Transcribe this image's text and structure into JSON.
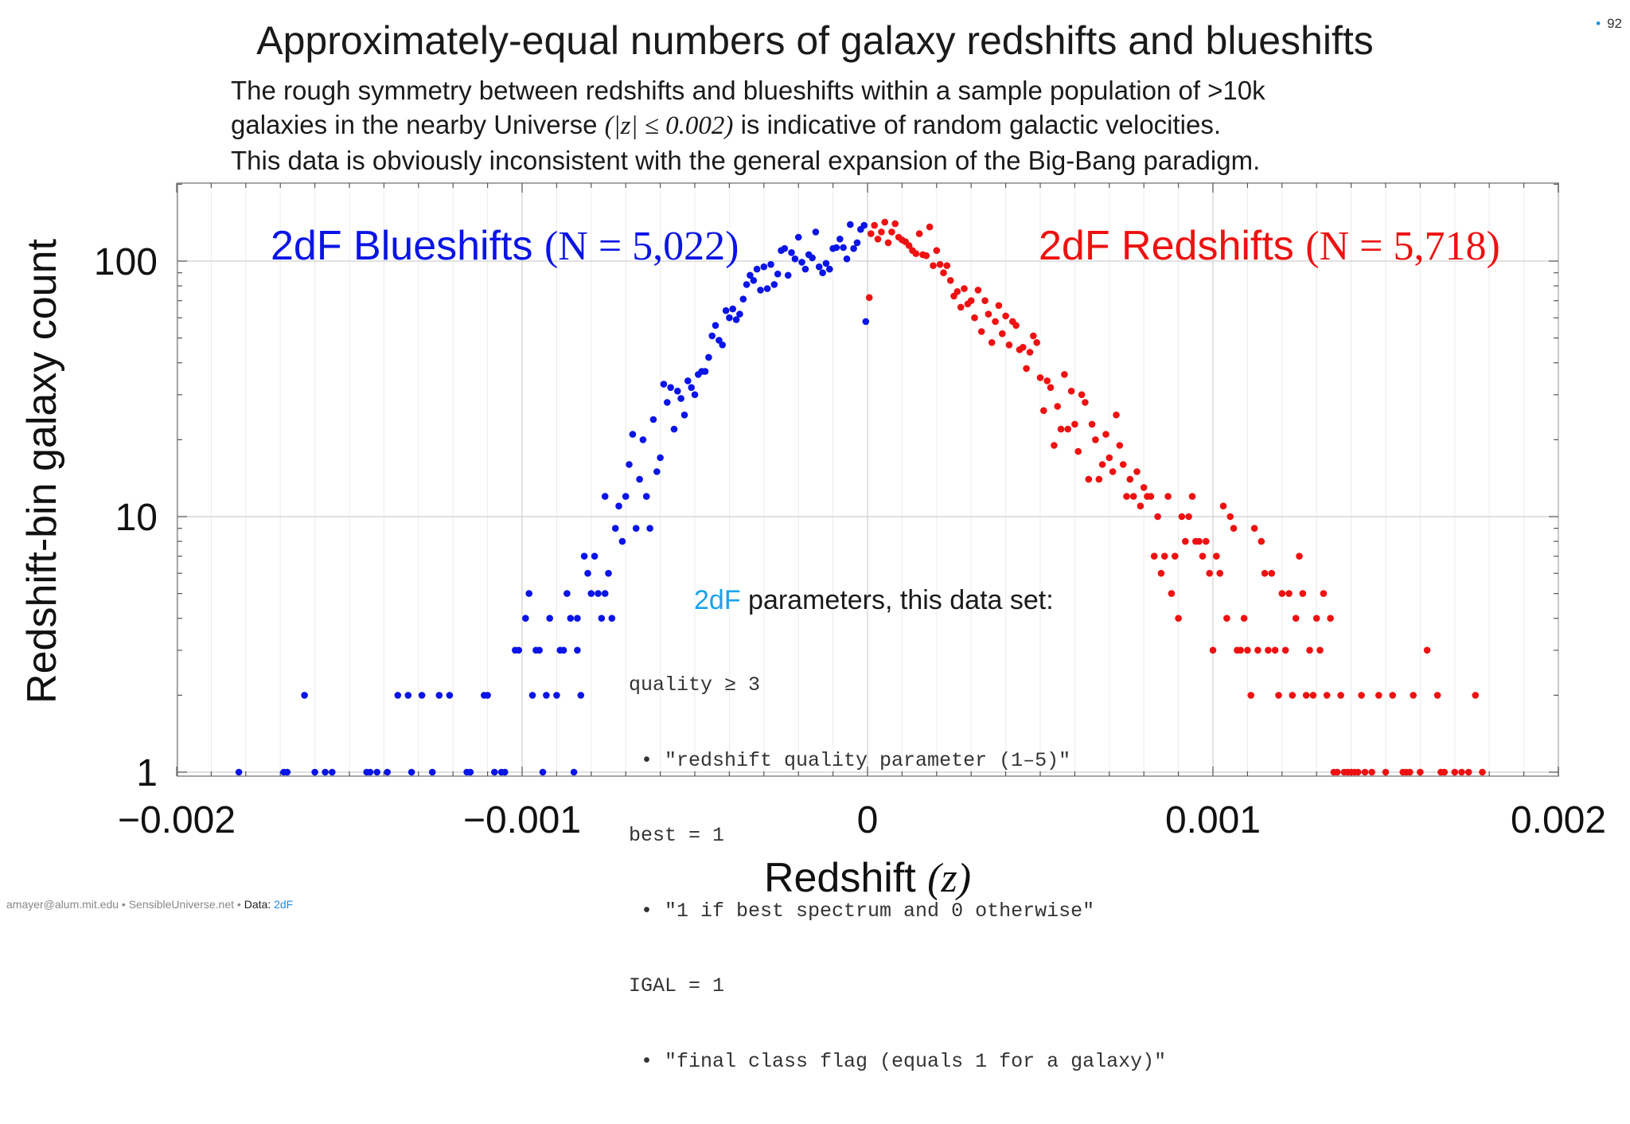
{
  "header": {
    "title": "Approximately-equal numbers of galaxy redshifts and blueshifts",
    "subtitle_line1": "The rough symmetry between redshifts and blueshifts within a sample population of >10k",
    "subtitle_line2_pre": "galaxies in the nearby Universe",
    "subtitle_line2_math": "(|z| ≤ 0.002)",
    "subtitle_line2_post": "is indicative of random galactic velocities.",
    "subtitle_line3": "This data is obviously inconsistent with the general expansion of the Big-Bang paradigm.",
    "page_number": "92"
  },
  "footer": {
    "credit": "amayer@alum.mit.edu • SensibleUniverse.net •",
    "data_label": "Data:",
    "data_source": "2dF"
  },
  "params_box": {
    "heading_highlight": "2dF",
    "heading_rest": " parameters, this data set:",
    "lines": [
      "quality ≥ 3",
      " • \"redshift quality parameter (1–5)\"",
      "best = 1",
      " • \"1 if best spectrum and 0 otherwise\"",
      "IGAL = 1",
      " • \"final class flag (equals 1 for a galaxy)\""
    ]
  },
  "chart_data": {
    "type": "scatter",
    "xlabel": "Redshift",
    "xlabel_var": "(z)",
    "ylabel": "Redshift-bin galaxy count",
    "xlim": [
      -0.002,
      0.002
    ],
    "ylim": [
      0.95,
      200
    ],
    "y_scale": "log",
    "grid": true,
    "x_ticks": [
      -0.002,
      -0.001,
      0,
      0.001,
      0.002
    ],
    "x_tick_labels": [
      "−0.002",
      "−0.001",
      "0",
      "0.001",
      "0.002"
    ],
    "y_ticks": [
      1,
      10,
      100
    ],
    "y_tick_labels": [
      "1",
      "10",
      "100"
    ],
    "colors": {
      "blueshift": "#0a14e6",
      "redshift": "#ee1111"
    },
    "series": [
      {
        "name": "2dF Blueshifts",
        "n_label": "(N = 5,022)",
        "color": "#0a14e6",
        "points": [
          [
            -0.00182,
            1
          ],
          [
            -0.00169,
            1
          ],
          [
            -0.00168,
            1
          ],
          [
            -0.00163,
            2
          ],
          [
            -0.0016,
            1
          ],
          [
            -0.00157,
            1
          ],
          [
            -0.00155,
            1
          ],
          [
            -0.00145,
            1
          ],
          [
            -0.00144,
            1
          ],
          [
            -0.00142,
            1
          ],
          [
            -0.00139,
            1
          ],
          [
            -0.00136,
            2
          ],
          [
            -0.00133,
            2
          ],
          [
            -0.00132,
            1
          ],
          [
            -0.00129,
            2
          ],
          [
            -0.00126,
            1
          ],
          [
            -0.00124,
            2
          ],
          [
            -0.00121,
            2
          ],
          [
            -0.00116,
            1
          ],
          [
            -0.00115,
            1
          ],
          [
            -0.00111,
            2
          ],
          [
            -0.0011,
            2
          ],
          [
            -0.00108,
            1
          ],
          [
            -0.00106,
            1
          ],
          [
            -0.00105,
            1
          ],
          [
            -0.00102,
            3
          ],
          [
            -0.00101,
            3
          ],
          [
            -0.00099,
            4
          ],
          [
            -0.00098,
            5
          ],
          [
            -0.00097,
            2
          ],
          [
            -0.00096,
            3
          ],
          [
            -0.00095,
            3
          ],
          [
            -0.00094,
            1
          ],
          [
            -0.00093,
            2
          ],
          [
            -0.00092,
            4
          ],
          [
            -0.0009,
            2
          ],
          [
            -0.00089,
            3
          ],
          [
            -0.00088,
            3
          ],
          [
            -0.00087,
            5
          ],
          [
            -0.00086,
            4
          ],
          [
            -0.00085,
            1
          ],
          [
            -0.00084,
            3
          ],
          [
            -0.00084,
            4
          ],
          [
            -0.00083,
            2
          ],
          [
            -0.00082,
            7
          ],
          [
            -0.00081,
            6
          ],
          [
            -0.0008,
            5
          ],
          [
            -0.00079,
            7
          ],
          [
            -0.00078,
            5
          ],
          [
            -0.00077,
            4
          ],
          [
            -0.00076,
            5
          ],
          [
            -0.00076,
            12
          ],
          [
            -0.00075,
            6
          ],
          [
            -0.00074,
            4
          ],
          [
            -0.00073,
            9
          ],
          [
            -0.00072,
            11
          ],
          [
            -0.00071,
            8
          ],
          [
            -0.0007,
            12
          ],
          [
            -0.00069,
            16
          ],
          [
            -0.00068,
            21
          ],
          [
            -0.00067,
            9
          ],
          [
            -0.00066,
            14
          ],
          [
            -0.00065,
            20
          ],
          [
            -0.00064,
            12
          ],
          [
            -0.00063,
            9
          ],
          [
            -0.00062,
            24
          ],
          [
            -0.00061,
            15
          ],
          [
            -0.0006,
            17
          ],
          [
            -0.00059,
            33
          ],
          [
            -0.00058,
            28
          ],
          [
            -0.00057,
            32
          ],
          [
            -0.00056,
            22
          ],
          [
            -0.00055,
            31
          ],
          [
            -0.00054,
            29
          ],
          [
            -0.00053,
            25
          ],
          [
            -0.00052,
            34
          ],
          [
            -0.00051,
            32
          ],
          [
            -0.0005,
            30
          ],
          [
            -0.00049,
            36
          ],
          [
            -0.00048,
            37
          ],
          [
            -0.00047,
            37
          ],
          [
            -0.00046,
            42
          ],
          [
            -0.00045,
            51
          ],
          [
            -0.00044,
            56
          ],
          [
            -0.00043,
            49
          ],
          [
            -0.00042,
            47
          ],
          [
            -0.00041,
            64
          ],
          [
            -0.0004,
            60
          ],
          [
            -0.00039,
            65
          ],
          [
            -0.00038,
            59
          ],
          [
            -0.00037,
            62
          ],
          [
            -0.00036,
            71
          ],
          [
            -0.00035,
            81
          ],
          [
            -0.00034,
            88
          ],
          [
            -0.00033,
            84
          ],
          [
            -0.00032,
            93
          ],
          [
            -0.00031,
            77
          ],
          [
            -0.0003,
            95
          ],
          [
            -0.00029,
            78
          ],
          [
            -0.00028,
            97
          ],
          [
            -0.00027,
            81
          ],
          [
            -0.00026,
            89
          ],
          [
            -0.00025,
            110
          ],
          [
            -0.00024,
            112
          ],
          [
            -0.00023,
            88
          ],
          [
            -0.00022,
            108
          ],
          [
            -0.00021,
            102
          ],
          [
            -0.0002,
            124
          ],
          [
            -0.00019,
            99
          ],
          [
            -0.00018,
            93
          ],
          [
            -0.00017,
            106
          ],
          [
            -0.00016,
            103
          ],
          [
            -0.00015,
            130
          ],
          [
            -0.00014,
            95
          ],
          [
            -0.00013,
            90
          ],
          [
            -0.00012,
            98
          ],
          [
            -0.00011,
            93
          ],
          [
            -0.0001,
            112
          ],
          [
            -9e-05,
            113
          ],
          [
            -8e-05,
            122
          ],
          [
            -7e-05,
            113
          ],
          [
            -6e-05,
            102
          ],
          [
            -5e-05,
            139
          ],
          [
            -4e-05,
            112
          ],
          [
            -3e-05,
            118
          ],
          [
            -2e-05,
            133
          ],
          [
            -1e-05,
            138
          ],
          [
            -5e-06,
            58
          ]
        ]
      },
      {
        "name": "2dF Redshifts",
        "n_label": "(N = 5,718)",
        "color": "#ee1111",
        "points": [
          [
            5e-06,
            72
          ],
          [
            1e-05,
            128
          ],
          [
            2e-05,
            138
          ],
          [
            3e-05,
            122
          ],
          [
            4e-05,
            130
          ],
          [
            5e-05,
            142
          ],
          [
            6e-05,
            118
          ],
          [
            7e-05,
            130
          ],
          [
            8e-05,
            140
          ],
          [
            9e-05,
            124
          ],
          [
            0.0001,
            121
          ],
          [
            0.00011,
            119
          ],
          [
            0.00012,
            115
          ],
          [
            0.00013,
            110
          ],
          [
            0.00014,
            107
          ],
          [
            0.00015,
            128
          ],
          [
            0.00016,
            106
          ],
          [
            0.00017,
            105
          ],
          [
            0.00018,
            136
          ],
          [
            0.00019,
            96
          ],
          [
            0.0002,
            110
          ],
          [
            0.00021,
            97
          ],
          [
            0.00022,
            90
          ],
          [
            0.00023,
            96
          ],
          [
            0.00024,
            84
          ],
          [
            0.00025,
            73
          ],
          [
            0.00026,
            76
          ],
          [
            0.00027,
            66
          ],
          [
            0.00028,
            78
          ],
          [
            0.00029,
            68
          ],
          [
            0.0003,
            70
          ],
          [
            0.00031,
            60
          ],
          [
            0.00032,
            77
          ],
          [
            0.00033,
            53
          ],
          [
            0.00034,
            70
          ],
          [
            0.00035,
            62
          ],
          [
            0.00036,
            48
          ],
          [
            0.00037,
            58
          ],
          [
            0.00038,
            67
          ],
          [
            0.00039,
            52
          ],
          [
            0.0004,
            61
          ],
          [
            0.00041,
            47
          ],
          [
            0.00042,
            58
          ],
          [
            0.00043,
            56
          ],
          [
            0.00044,
            45
          ],
          [
            0.00045,
            46
          ],
          [
            0.00046,
            38
          ],
          [
            0.00047,
            44
          ],
          [
            0.00048,
            51
          ],
          [
            0.00049,
            48
          ],
          [
            0.0005,
            35
          ],
          [
            0.00051,
            26
          ],
          [
            0.00052,
            34
          ],
          [
            0.00053,
            32
          ],
          [
            0.00054,
            19
          ],
          [
            0.00055,
            27
          ],
          [
            0.00056,
            22
          ],
          [
            0.00057,
            36
          ],
          [
            0.00058,
            22
          ],
          [
            0.00059,
            31
          ],
          [
            0.0006,
            23
          ],
          [
            0.00061,
            18
          ],
          [
            0.00062,
            30
          ],
          [
            0.00063,
            28
          ],
          [
            0.00064,
            14
          ],
          [
            0.00065,
            23
          ],
          [
            0.00066,
            20
          ],
          [
            0.00067,
            14
          ],
          [
            0.00068,
            16
          ],
          [
            0.00069,
            21
          ],
          [
            0.0007,
            17
          ],
          [
            0.00071,
            15
          ],
          [
            0.00072,
            25
          ],
          [
            0.00073,
            19
          ],
          [
            0.00074,
            16
          ],
          [
            0.00075,
            12
          ],
          [
            0.00076,
            14
          ],
          [
            0.00077,
            12
          ],
          [
            0.00078,
            15
          ],
          [
            0.00079,
            11
          ],
          [
            0.0008,
            13
          ],
          [
            0.00081,
            12
          ],
          [
            0.00082,
            12
          ],
          [
            0.00083,
            7
          ],
          [
            0.00084,
            10
          ],
          [
            0.00085,
            6
          ],
          [
            0.00086,
            7
          ],
          [
            0.00087,
            12
          ],
          [
            0.00088,
            5
          ],
          [
            0.00089,
            7
          ],
          [
            0.0009,
            4
          ],
          [
            0.00091,
            10
          ],
          [
            0.00092,
            8
          ],
          [
            0.00093,
            10
          ],
          [
            0.00094,
            12
          ],
          [
            0.00095,
            8
          ],
          [
            0.00096,
            8
          ],
          [
            0.00097,
            7
          ],
          [
            0.00098,
            8
          ],
          [
            0.00099,
            6
          ],
          [
            0.001,
            3
          ],
          [
            0.00101,
            7
          ],
          [
            0.00102,
            6
          ],
          [
            0.00103,
            11
          ],
          [
            0.00104,
            4
          ],
          [
            0.00105,
            10
          ],
          [
            0.00106,
            9
          ],
          [
            0.00107,
            3
          ],
          [
            0.00108,
            3
          ],
          [
            0.00109,
            4
          ],
          [
            0.0011,
            3
          ],
          [
            0.00111,
            2
          ],
          [
            0.00112,
            9
          ],
          [
            0.00113,
            3
          ],
          [
            0.00114,
            8
          ],
          [
            0.00115,
            6
          ],
          [
            0.00116,
            3
          ],
          [
            0.00117,
            6
          ],
          [
            0.00118,
            3
          ],
          [
            0.00119,
            2
          ],
          [
            0.0012,
            5
          ],
          [
            0.00121,
            3
          ],
          [
            0.00122,
            5
          ],
          [
            0.00123,
            2
          ],
          [
            0.00124,
            4
          ],
          [
            0.00125,
            7
          ],
          [
            0.00126,
            5
          ],
          [
            0.00127,
            2
          ],
          [
            0.00128,
            3
          ],
          [
            0.00129,
            2
          ],
          [
            0.0013,
            4
          ],
          [
            0.00131,
            3
          ],
          [
            0.00132,
            5
          ],
          [
            0.00133,
            2
          ],
          [
            0.00134,
            4
          ],
          [
            0.00135,
            1
          ],
          [
            0.00136,
            1
          ],
          [
            0.00137,
            2
          ],
          [
            0.00138,
            1
          ],
          [
            0.00139,
            1
          ],
          [
            0.0014,
            1
          ],
          [
            0.00141,
            1
          ],
          [
            0.00142,
            1
          ],
          [
            0.00143,
            2
          ],
          [
            0.00144,
            1
          ],
          [
            0.00146,
            1
          ],
          [
            0.00148,
            2
          ],
          [
            0.0015,
            1
          ],
          [
            0.00152,
            2
          ],
          [
            0.00155,
            1
          ],
          [
            0.00156,
            1
          ],
          [
            0.00157,
            1
          ],
          [
            0.00158,
            2
          ],
          [
            0.0016,
            1
          ],
          [
            0.00162,
            3
          ],
          [
            0.00165,
            2
          ],
          [
            0.00166,
            1
          ],
          [
            0.00167,
            1
          ],
          [
            0.0017,
            1
          ],
          [
            0.00172,
            1
          ],
          [
            0.00174,
            1
          ],
          [
            0.00176,
            2
          ],
          [
            0.00178,
            1
          ]
        ]
      }
    ]
  }
}
